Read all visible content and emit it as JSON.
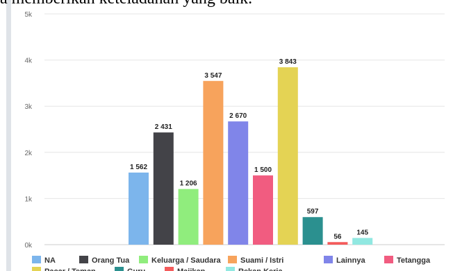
{
  "header_text": "a memberikan keteladanan yang baik.",
  "chart_data": {
    "type": "bar",
    "title": "",
    "xlabel": "",
    "ylabel": "",
    "ylim": [
      0,
      5000
    ],
    "y_ticks": [
      {
        "value": 0,
        "label": "0k"
      },
      {
        "value": 1000,
        "label": "1k"
      },
      {
        "value": 2000,
        "label": "2k"
      },
      {
        "value": 3000,
        "label": "3k"
      },
      {
        "value": 4000,
        "label": "4k"
      },
      {
        "value": 5000,
        "label": "5k"
      }
    ],
    "grid": true,
    "legend_position": "bottom",
    "series": [
      {
        "name": "NA",
        "value": 1562,
        "label": "1 562",
        "color": "#7cb5ec"
      },
      {
        "name": "Orang Tua",
        "value": 2431,
        "label": "2 431",
        "color": "#434348"
      },
      {
        "name": "Keluarga / Saudara",
        "value": 1206,
        "label": "1 206",
        "color": "#90ed7d"
      },
      {
        "name": "Suami / Istri",
        "value": 3547,
        "label": "3 547",
        "color": "#f7a35c"
      },
      {
        "name": "Lainnya",
        "value": 2670,
        "label": "2 670",
        "color": "#8085e9"
      },
      {
        "name": "Tetangga",
        "value": 1500,
        "label": "1 500",
        "color": "#f15c80"
      },
      {
        "name": "Pacar / Teman",
        "value": 3843,
        "label": "3 843",
        "color": "#e4d354"
      },
      {
        "name": "Guru",
        "value": 597,
        "label": "597",
        "color": "#2b908f"
      },
      {
        "name": "Majikan",
        "value": 56,
        "label": "56",
        "color": "#f45b5b"
      },
      {
        "name": "Rekan Kerja",
        "value": 145,
        "label": "145",
        "color": "#91e8e1"
      }
    ]
  }
}
